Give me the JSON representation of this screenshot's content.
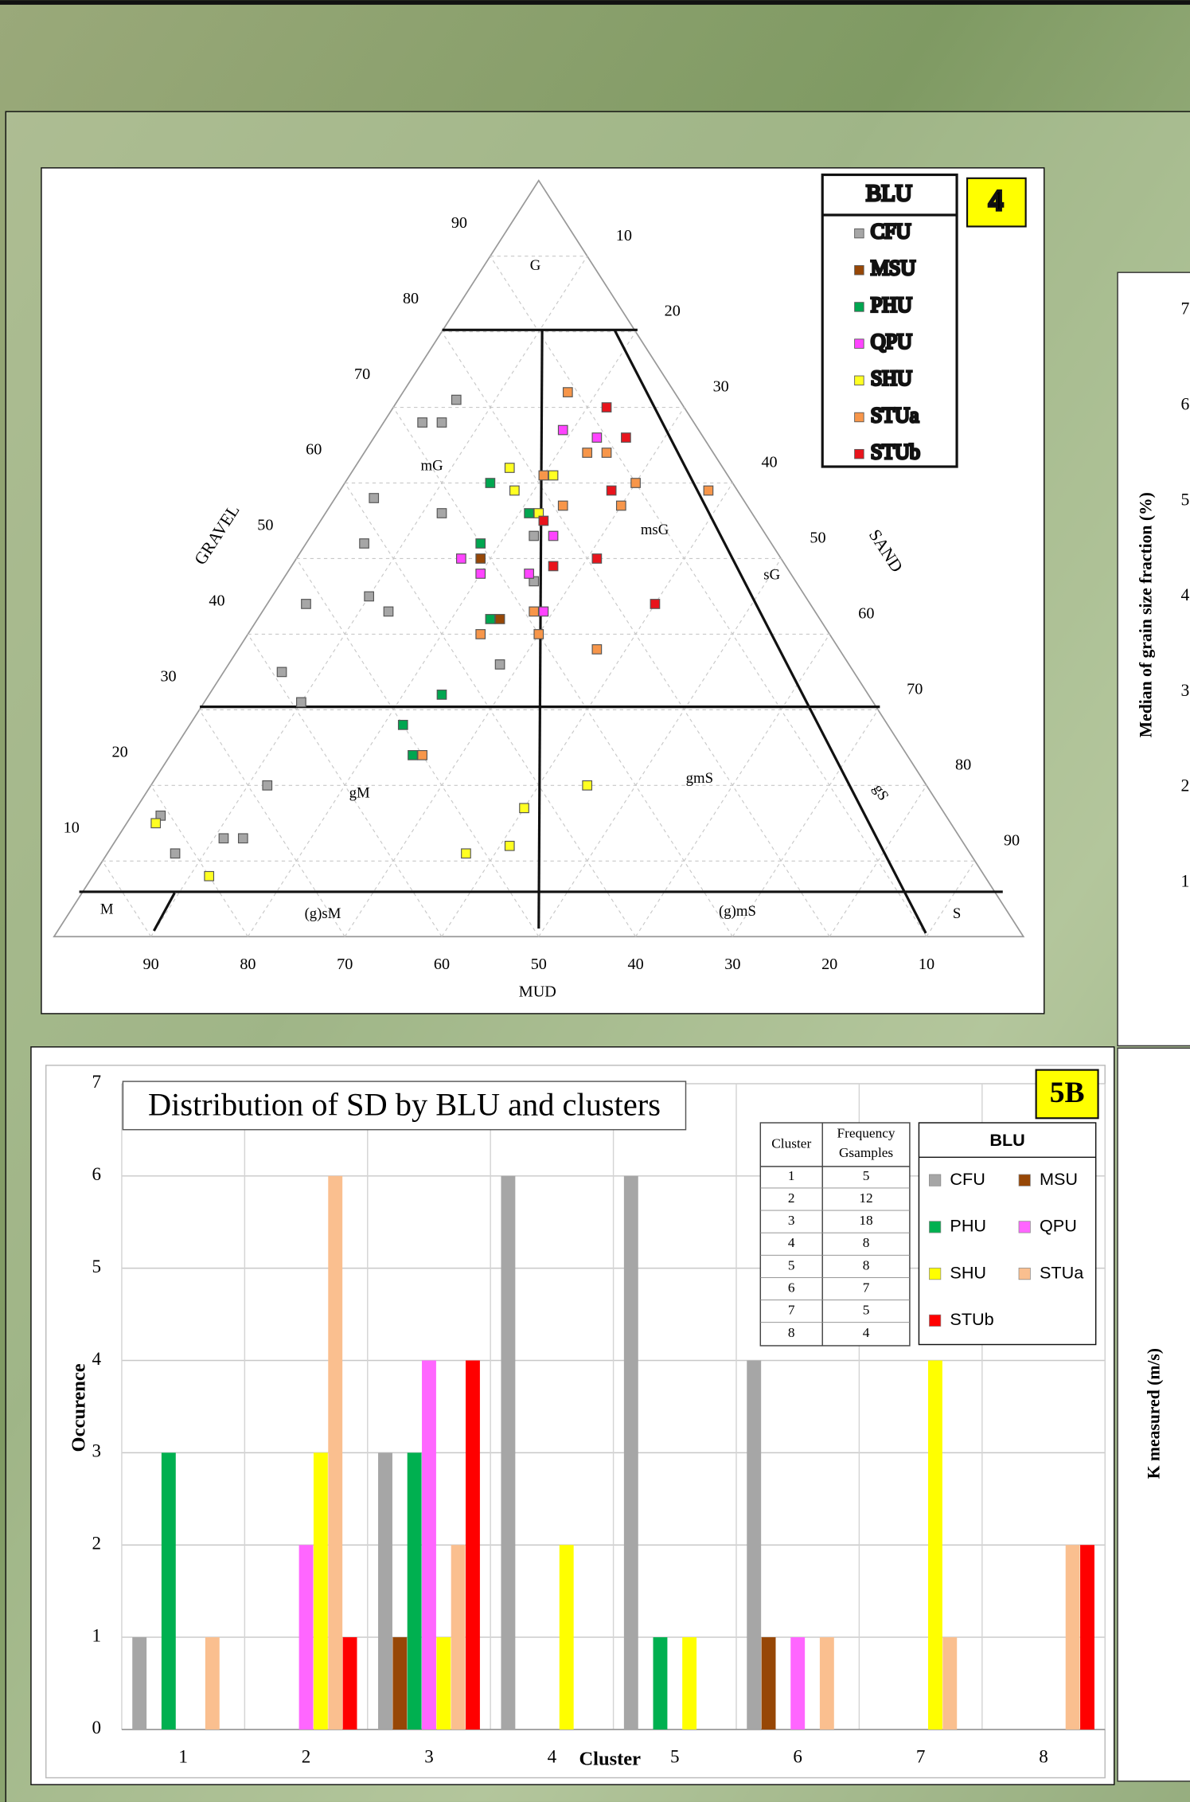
{
  "chart_data": [
    {
      "type": "ternary",
      "badge": "4",
      "legend_title": "BLU",
      "axis_labels": {
        "gravel": "GRAVEL",
        "sand": "SAND",
        "mud": "MUD"
      },
      "ticks": {
        "gravel": [
          90,
          80,
          70,
          60,
          50,
          40,
          30,
          20,
          10
        ],
        "sand": [
          10,
          20,
          30,
          40,
          50,
          60,
          70,
          80,
          90
        ],
        "mud": [
          90,
          80,
          70,
          60,
          50,
          40,
          30,
          20,
          10
        ]
      },
      "region_labels": [
        "G",
        "mG",
        "msG",
        "sG",
        "gM",
        "gmS",
        "gS",
        "M",
        "(g)sM",
        "(g)mS",
        "S"
      ],
      "series": [
        {
          "name": "CFU",
          "color": "#a6a6a6",
          "gravel": [
            71,
            68,
            68,
            58,
            56,
            52,
            53,
            45,
            43,
            47,
            44,
            36,
            35,
            31,
            20,
            16,
            11,
            13,
            13
          ],
          "sand": [
            6,
            4,
            6,
            4,
            12,
            6,
            23,
            10,
            13,
            26,
            4,
            28,
            6,
            10,
            12,
            3,
            7,
            11,
            13
          ]
        },
        {
          "name": "MSU",
          "color": "#974706",
          "gravel": [
            50,
            42
          ],
          "sand": [
            19,
            25
          ]
        },
        {
          "name": "PHU",
          "color": "#00a650",
          "gravel": [
            60,
            56,
            52,
            42,
            32,
            28,
            24
          ],
          "sand": [
            15,
            21,
            18,
            24,
            24,
            22,
            25
          ]
        },
        {
          "name": "QPU",
          "color": "#ff44ff",
          "gravel": [
            67,
            66,
            53,
            50,
            48,
            48,
            43
          ],
          "sand": [
            19,
            23,
            25,
            17,
            20,
            25,
            29
          ]
        },
        {
          "name": "SHU",
          "color": "#ffff22",
          "gravel": [
            62,
            59,
            61,
            56,
            20,
            17,
            12,
            11,
            15,
            8
          ],
          "sand": [
            16,
            18,
            21,
            22,
            45,
            40,
            41,
            37,
            3,
            12
          ]
        },
        {
          "name": "STUa",
          "color": "#f7964a",
          "gravel": [
            72,
            61,
            64,
            64,
            60,
            57,
            57,
            59,
            43,
            40,
            40,
            38,
            24
          ],
          "sand": [
            17,
            20,
            23,
            25,
            30,
            30,
            24,
            38,
            28,
            30,
            24,
            37,
            26
          ]
        },
        {
          "name": "STUb",
          "color": "#e8141c",
          "gravel": [
            70,
            66,
            59,
            55,
            49,
            50,
            44
          ],
          "sand": [
            22,
            26,
            28,
            23,
            27,
            31,
            40
          ]
        }
      ]
    },
    {
      "type": "bar",
      "title": "Distribution of SD by BLU and clusters",
      "badge": "5B",
      "xlabel": "Cluster",
      "ylabel": "Occurence",
      "legend_title": "BLU",
      "categories": [
        "1",
        "2",
        "3",
        "4",
        "5",
        "6",
        "7",
        "8"
      ],
      "ylim": [
        0,
        7
      ],
      "yticks": [
        0,
        1,
        2,
        3,
        4,
        5,
        6,
        7
      ],
      "grid": true,
      "series": [
        {
          "name": "CFU",
          "color": "#a6a6a6",
          "values": [
            1,
            0,
            3,
            6,
            6,
            4,
            0,
            0
          ]
        },
        {
          "name": "MSU",
          "color": "#974706",
          "values": [
            0,
            0,
            1,
            0,
            0,
            1,
            0,
            0
          ]
        },
        {
          "name": "PHU",
          "color": "#00b050",
          "values": [
            3,
            0,
            3,
            0,
            1,
            0,
            0,
            0
          ]
        },
        {
          "name": "QPU",
          "color": "#ff66ff",
          "values": [
            0,
            2,
            4,
            0,
            0,
            1,
            0,
            0
          ]
        },
        {
          "name": "SHU",
          "color": "#ffff00",
          "values": [
            0,
            3,
            1,
            2,
            1,
            0,
            4,
            0
          ]
        },
        {
          "name": "STUa",
          "color": "#fabf8f",
          "values": [
            1,
            6,
            2,
            0,
            0,
            1,
            1,
            2
          ]
        },
        {
          "name": "STUb",
          "color": "#ff0000",
          "values": [
            0,
            1,
            4,
            0,
            0,
            0,
            0,
            2
          ]
        }
      ],
      "table": {
        "columns": [
          "Cluster",
          [
            "Frequency",
            "Gsamples"
          ]
        ],
        "rows": [
          [
            1,
            5
          ],
          [
            2,
            12
          ],
          [
            3,
            18
          ],
          [
            4,
            8
          ],
          [
            5,
            8
          ],
          [
            6,
            7
          ],
          [
            7,
            5
          ],
          [
            8,
            4
          ]
        ]
      }
    },
    {
      "type": "partial",
      "ylabel": "Median of grain size fraction (%)",
      "ylim": [
        0,
        7
      ],
      "yticks": [
        1,
        2,
        3,
        4,
        5,
        6,
        7
      ]
    },
    {
      "type": "partial",
      "ylabel": "K measured (m/s)"
    }
  ]
}
